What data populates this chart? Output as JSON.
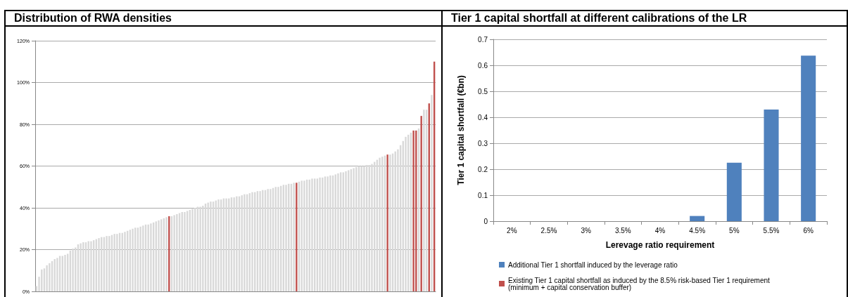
{
  "chart_data": [
    {
      "type": "bar",
      "title": "Distribution of RWA densities",
      "categories": [
        null,
        null,
        null,
        null,
        null,
        null,
        null,
        null,
        null,
        null,
        null,
        null,
        null,
        null,
        null,
        null,
        null,
        null,
        null,
        null,
        null,
        null,
        null,
        null,
        null,
        null,
        null,
        null,
        null,
        null,
        null,
        null,
        null,
        null,
        null,
        null,
        null,
        null,
        null,
        null,
        null,
        null,
        null,
        null,
        null,
        null,
        null,
        null,
        null,
        null,
        null,
        null,
        null,
        null,
        null,
        null,
        null,
        null,
        null,
        null,
        null,
        null,
        null,
        null,
        null,
        null,
        null,
        null,
        null,
        null,
        null,
        null,
        null,
        null,
        null,
        null,
        null,
        null,
        null,
        null,
        null,
        null,
        null,
        null,
        null,
        null,
        null,
        null,
        null,
        null,
        null,
        null,
        null,
        null,
        null,
        null,
        null,
        null,
        null,
        null,
        null,
        null,
        null,
        null,
        null,
        null,
        null,
        null,
        null,
        null,
        null,
        null,
        null,
        null,
        null,
        null,
        null,
        null,
        null,
        null,
        null,
        null,
        null,
        null,
        null,
        null,
        null,
        null,
        null,
        null,
        null,
        null,
        null,
        null,
        null,
        null,
        null,
        null,
        null,
        null,
        null,
        null,
        null,
        null,
        null,
        null,
        null,
        null,
        null,
        null,
        null,
        null,
        null,
        null
      ],
      "values": [
        2.5,
        7,
        10.5,
        11,
        12.5,
        13.5,
        14.5,
        15.5,
        16,
        17,
        17,
        17.5,
        18,
        19.5,
        20.5,
        21,
        22.5,
        23,
        23.5,
        23.5,
        24,
        24,
        24.5,
        25,
        25.5,
        26,
        26,
        26.5,
        26.5,
        27,
        27.5,
        27.5,
        28,
        28,
        28.5,
        29,
        29.5,
        30,
        30.5,
        30.5,
        31,
        31.5,
        32,
        32,
        32.5,
        33,
        33.5,
        34,
        34.5,
        35,
        35.5,
        36,
        36,
        36.5,
        37,
        37.5,
        38,
        38,
        38.5,
        39,
        39.5,
        40,
        40.5,
        40.5,
        41,
        42,
        42.5,
        43,
        43,
        43.5,
        44,
        44,
        44.5,
        44.5,
        44.5,
        45,
        45,
        45.5,
        45.5,
        46,
        46.5,
        46.5,
        47,
        47.5,
        47.5,
        48,
        48,
        48.5,
        48.5,
        49,
        49,
        49.5,
        50,
        50,
        50.5,
        51,
        51,
        51.5,
        51.5,
        52,
        52,
        52.5,
        53,
        53,
        53.5,
        53.5,
        54,
        54,
        54,
        54.5,
        54.5,
        55,
        55,
        55.5,
        55.5,
        56,
        56.5,
        57,
        57,
        57.5,
        58,
        58.5,
        59,
        59.5,
        60,
        60,
        60,
        60.5,
        60.5,
        61,
        62,
        63,
        64,
        64.5,
        65,
        65.5,
        65.5,
        66,
        67,
        68,
        70,
        72,
        74,
        75,
        76,
        77,
        77,
        78,
        84,
        87,
        87,
        90,
        94,
        110
      ],
      "colors": [
        "#d9d9d9",
        "#d9d9d9",
        "#d9d9d9",
        "#d9d9d9",
        "#d9d9d9",
        "#d9d9d9",
        "#d9d9d9",
        "#d9d9d9",
        "#d9d9d9",
        "#d9d9d9",
        "#d9d9d9",
        "#d9d9d9",
        "#d9d9d9",
        "#d9d9d9",
        "#d9d9d9",
        "#d9d9d9",
        "#d9d9d9",
        "#d9d9d9",
        "#d9d9d9",
        "#d9d9d9",
        "#d9d9d9",
        "#d9d9d9",
        "#d9d9d9",
        "#d9d9d9",
        "#d9d9d9",
        "#d9d9d9",
        "#d9d9d9",
        "#d9d9d9",
        "#d9d9d9",
        "#d9d9d9",
        "#d9d9d9",
        "#d9d9d9",
        "#d9d9d9",
        "#d9d9d9",
        "#d9d9d9",
        "#d9d9d9",
        "#d9d9d9",
        "#d9d9d9",
        "#d9d9d9",
        "#d9d9d9",
        "#d9d9d9",
        "#d9d9d9",
        "#d9d9d9",
        "#d9d9d9",
        "#d9d9d9",
        "#d9d9d9",
        "#d9d9d9",
        "#d9d9d9",
        "#d9d9d9",
        "#d9d9d9",
        "#d9d9d9",
        "#c0504d",
        "#d9d9d9",
        "#d9d9d9",
        "#d9d9d9",
        "#d9d9d9",
        "#d9d9d9",
        "#d9d9d9",
        "#d9d9d9",
        "#d9d9d9",
        "#d9d9d9",
        "#d9d9d9",
        "#d9d9d9",
        "#d9d9d9",
        "#d9d9d9",
        "#d9d9d9",
        "#d9d9d9",
        "#d9d9d9",
        "#d9d9d9",
        "#d9d9d9",
        "#d9d9d9",
        "#d9d9d9",
        "#d9d9d9",
        "#d9d9d9",
        "#d9d9d9",
        "#d9d9d9",
        "#d9d9d9",
        "#d9d9d9",
        "#d9d9d9",
        "#d9d9d9",
        "#d9d9d9",
        "#d9d9d9",
        "#d9d9d9",
        "#d9d9d9",
        "#d9d9d9",
        "#d9d9d9",
        "#d9d9d9",
        "#d9d9d9",
        "#d9d9d9",
        "#d9d9d9",
        "#d9d9d9",
        "#d9d9d9",
        "#d9d9d9",
        "#d9d9d9",
        "#d9d9d9",
        "#d9d9d9",
        "#d9d9d9",
        "#d9d9d9",
        "#d9d9d9",
        "#d9d9d9",
        "#c0504d",
        "#d9d9d9",
        "#d9d9d9",
        "#d9d9d9",
        "#d9d9d9",
        "#d9d9d9",
        "#d9d9d9",
        "#d9d9d9",
        "#d9d9d9",
        "#d9d9d9",
        "#d9d9d9",
        "#d9d9d9",
        "#d9d9d9",
        "#d9d9d9",
        "#d9d9d9",
        "#d9d9d9",
        "#d9d9d9",
        "#d9d9d9",
        "#d9d9d9",
        "#d9d9d9",
        "#d9d9d9",
        "#d9d9d9",
        "#d9d9d9",
        "#d9d9d9",
        "#d9d9d9",
        "#d9d9d9",
        "#d9d9d9",
        "#d9d9d9",
        "#d9d9d9",
        "#d9d9d9",
        "#d9d9d9",
        "#d9d9d9",
        "#d9d9d9",
        "#d9d9d9",
        "#d9d9d9",
        "#c0504d",
        "#d9d9d9",
        "#d9d9d9",
        "#d9d9d9",
        "#d9d9d9",
        "#d9d9d9",
        "#d9d9d9",
        "#d9d9d9",
        "#d9d9d9",
        "#d9d9d9",
        "#c0504d",
        "#c0504d",
        "#d9d9d9",
        "#c0504d",
        "#d9d9d9",
        "#d9d9d9",
        "#c0504d",
        "#d9d9d9",
        "#c0504d"
      ],
      "ylim": [
        0,
        120
      ],
      "yticks": [
        {
          "value": 0,
          "label": "0%"
        },
        {
          "value": 20,
          "label": "20%"
        },
        {
          "value": 40,
          "label": "40%"
        },
        {
          "value": 60,
          "label": "60%"
        },
        {
          "value": 80,
          "label": "80%"
        },
        {
          "value": 100,
          "label": "100%"
        },
        {
          "value": 120,
          "label": "120%"
        }
      ],
      "grid": "y"
    },
    {
      "type": "bar",
      "title": "Tier 1 capital shortfall at different calibrations of the LR",
      "xlabel": "Lerevage ratio requirement",
      "ylabel": "Tier 1 capital shortfall (€bn)",
      "categories": [
        "2%",
        "2.5%",
        "3%",
        "3.5%",
        "4%",
        "4.5%",
        "5%",
        "5.5%",
        "6%"
      ],
      "series": [
        {
          "name": "Additional Tier 1 shortfall induced by the leverage ratio",
          "color": "#4f81bd",
          "values": [
            0,
            0,
            0,
            0,
            0,
            0.02,
            0.225,
            0.43,
            0.637
          ]
        },
        {
          "name": "Existing Tier 1 capital shortfall as induced by the 8.5% risk-based Tier 1 requirement (minimum + capital conservation buffer)",
          "color": "#c0504d",
          "values": [
            0,
            0,
            0,
            0,
            0,
            0,
            0,
            0,
            0
          ]
        }
      ],
      "stacked": true,
      "ylim": [
        0,
        0.7
      ],
      "yticks": [
        0,
        0.1,
        0.2,
        0.3,
        0.4,
        0.5,
        0.6,
        0.7
      ],
      "grid": "y",
      "legend": "bottom"
    }
  ]
}
